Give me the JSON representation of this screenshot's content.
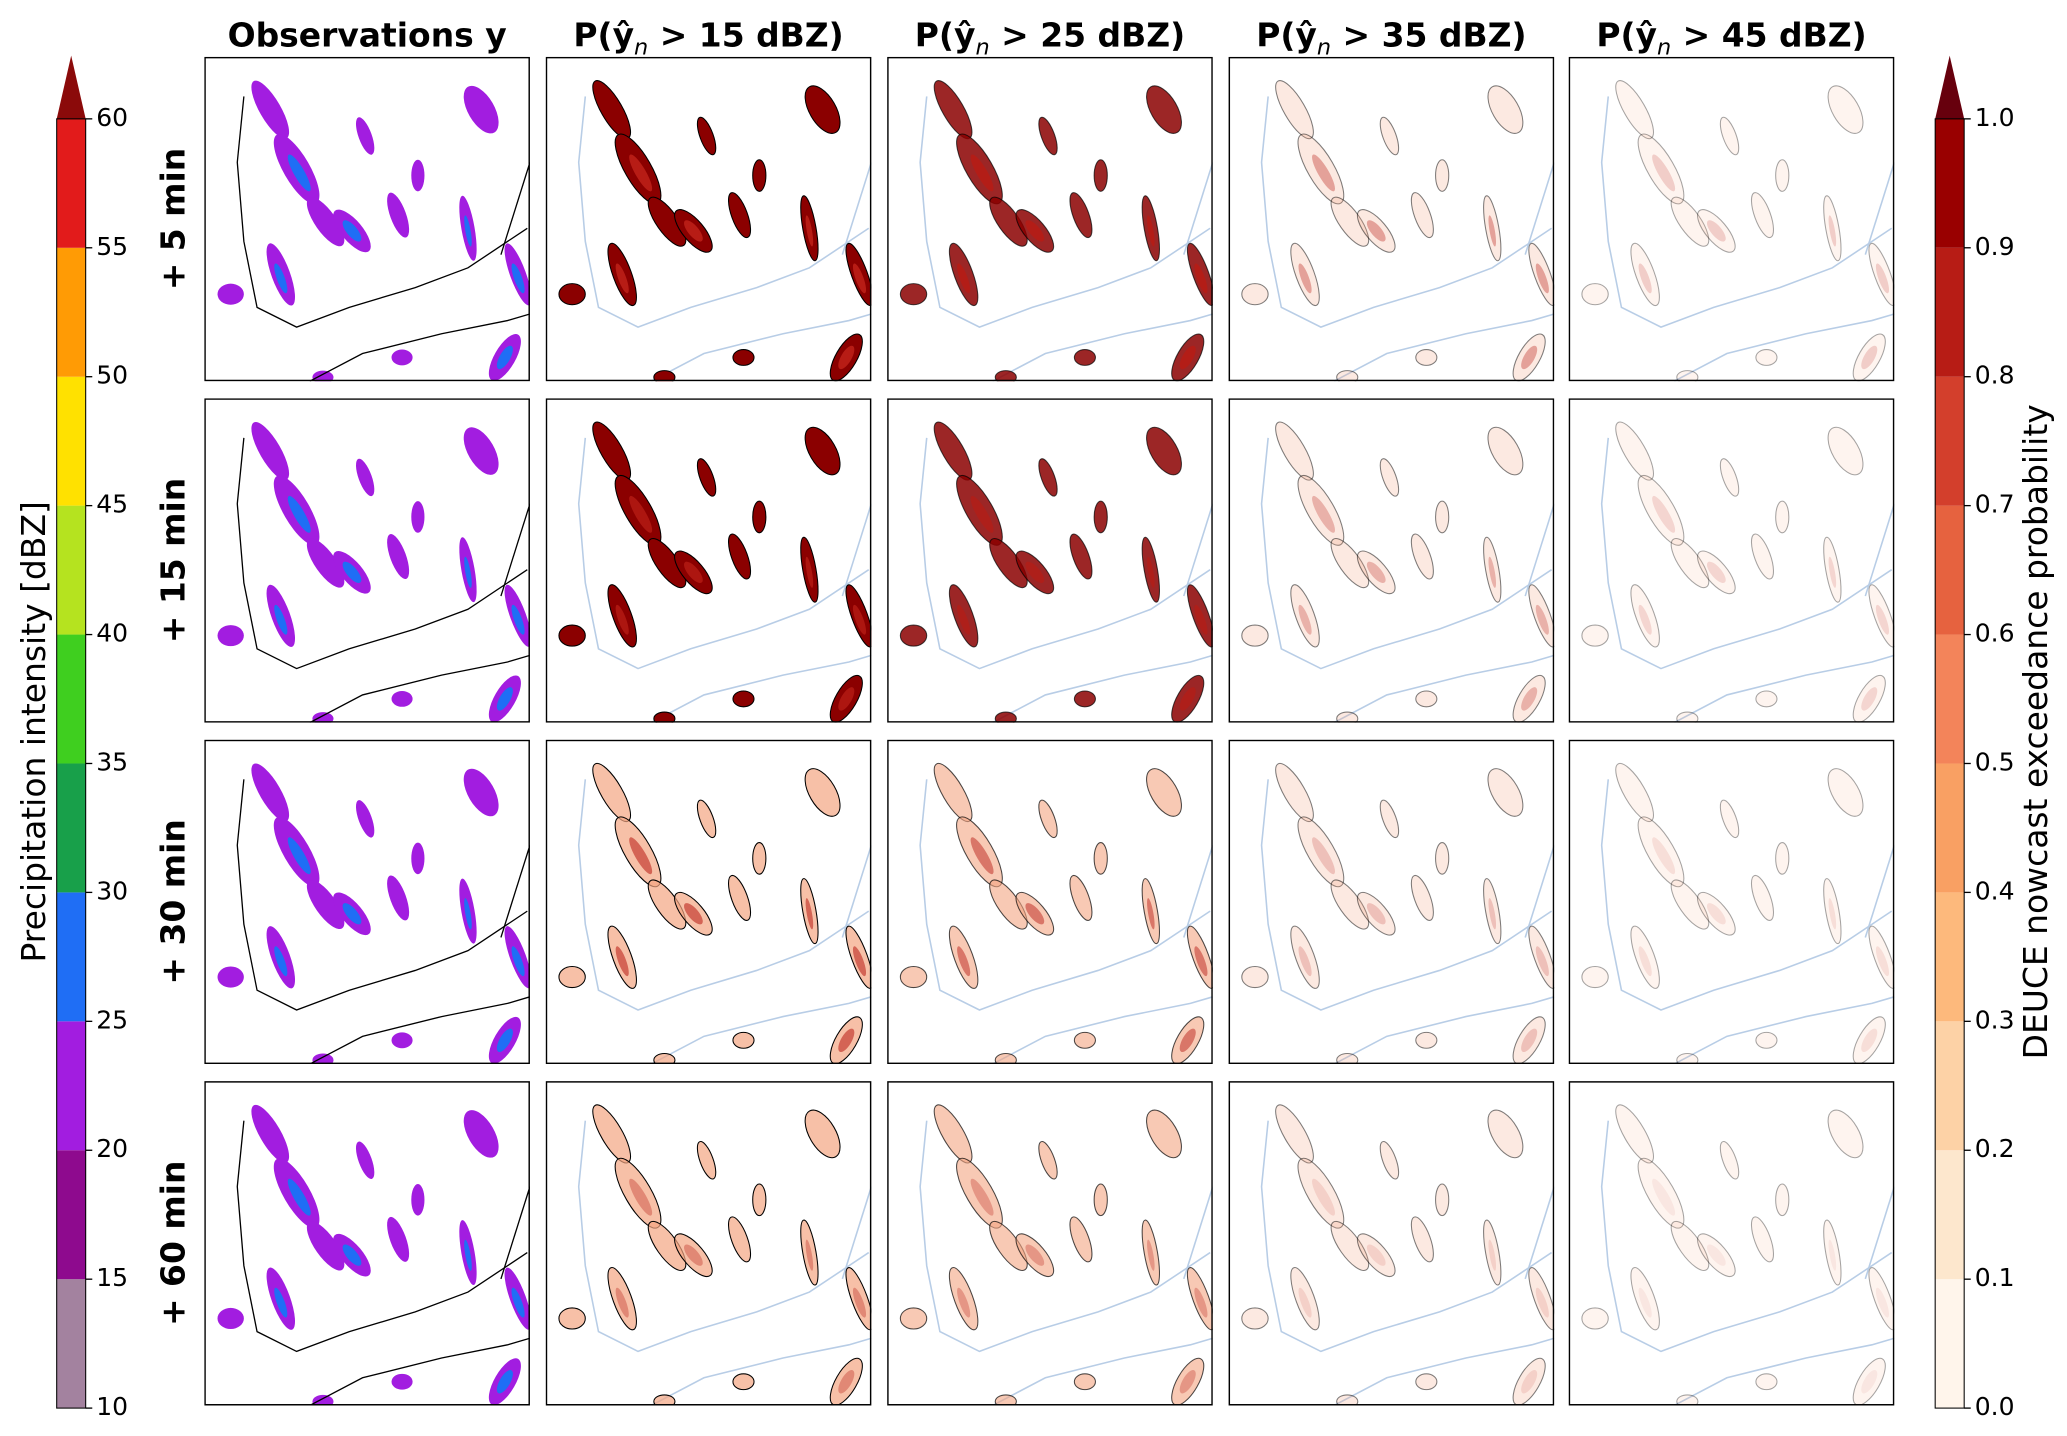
{
  "column_titles": [
    "Observations y",
    {
      "prefix": "P(ŷ",
      "subscript": "n",
      "suffix": " > 15 dBZ)"
    },
    {
      "prefix": "P(ŷ",
      "subscript": "n",
      "suffix": " > 25 dBZ)"
    },
    {
      "prefix": "P(ŷ",
      "subscript": "n",
      "suffix": " > 35 dBZ)"
    },
    {
      "prefix": "P(ŷ",
      "subscript": "n",
      "suffix": " > 45 dBZ)"
    }
  ],
  "row_labels": [
    "+ 5 min",
    "+ 15 min",
    "+ 30 min",
    "+ 60 min"
  ],
  "left_colorbar": {
    "label": "Precipitation intensity [dBZ]",
    "lim": [
      10,
      60
    ],
    "ticks": [
      10,
      15,
      20,
      25,
      30,
      35,
      40,
      45,
      50,
      55,
      60
    ],
    "colors": [
      "#a3829f",
      "#8e0a8e",
      "#a21de0",
      "#1f6ef5",
      "#18a04a",
      "#3fcf1f",
      "#b5e31f",
      "#ffe100",
      "#ff9b05",
      "#e21b1b"
    ],
    "extend_color": "#8b0a0a"
  },
  "right_colorbar": {
    "label": "DEUCE nowcast exceedance probability",
    "lim": [
      0,
      1
    ],
    "ticks": [
      {
        "value": 0,
        "label": "0.0"
      },
      0.1,
      0.2,
      0.3,
      0.4,
      0.5,
      0.6,
      0.7,
      0.8,
      0.9,
      {
        "value": 1,
        "label": "1.0"
      }
    ],
    "colors": [
      "#fff5eb",
      "#fde7cd",
      "#fdd2a6",
      "#fdb97c",
      "#f9a063",
      "#f3845a",
      "#e6623f",
      "#d33f2c",
      "#b71c15",
      "#990000"
    ],
    "extend_color": "#67000d"
  }
}
